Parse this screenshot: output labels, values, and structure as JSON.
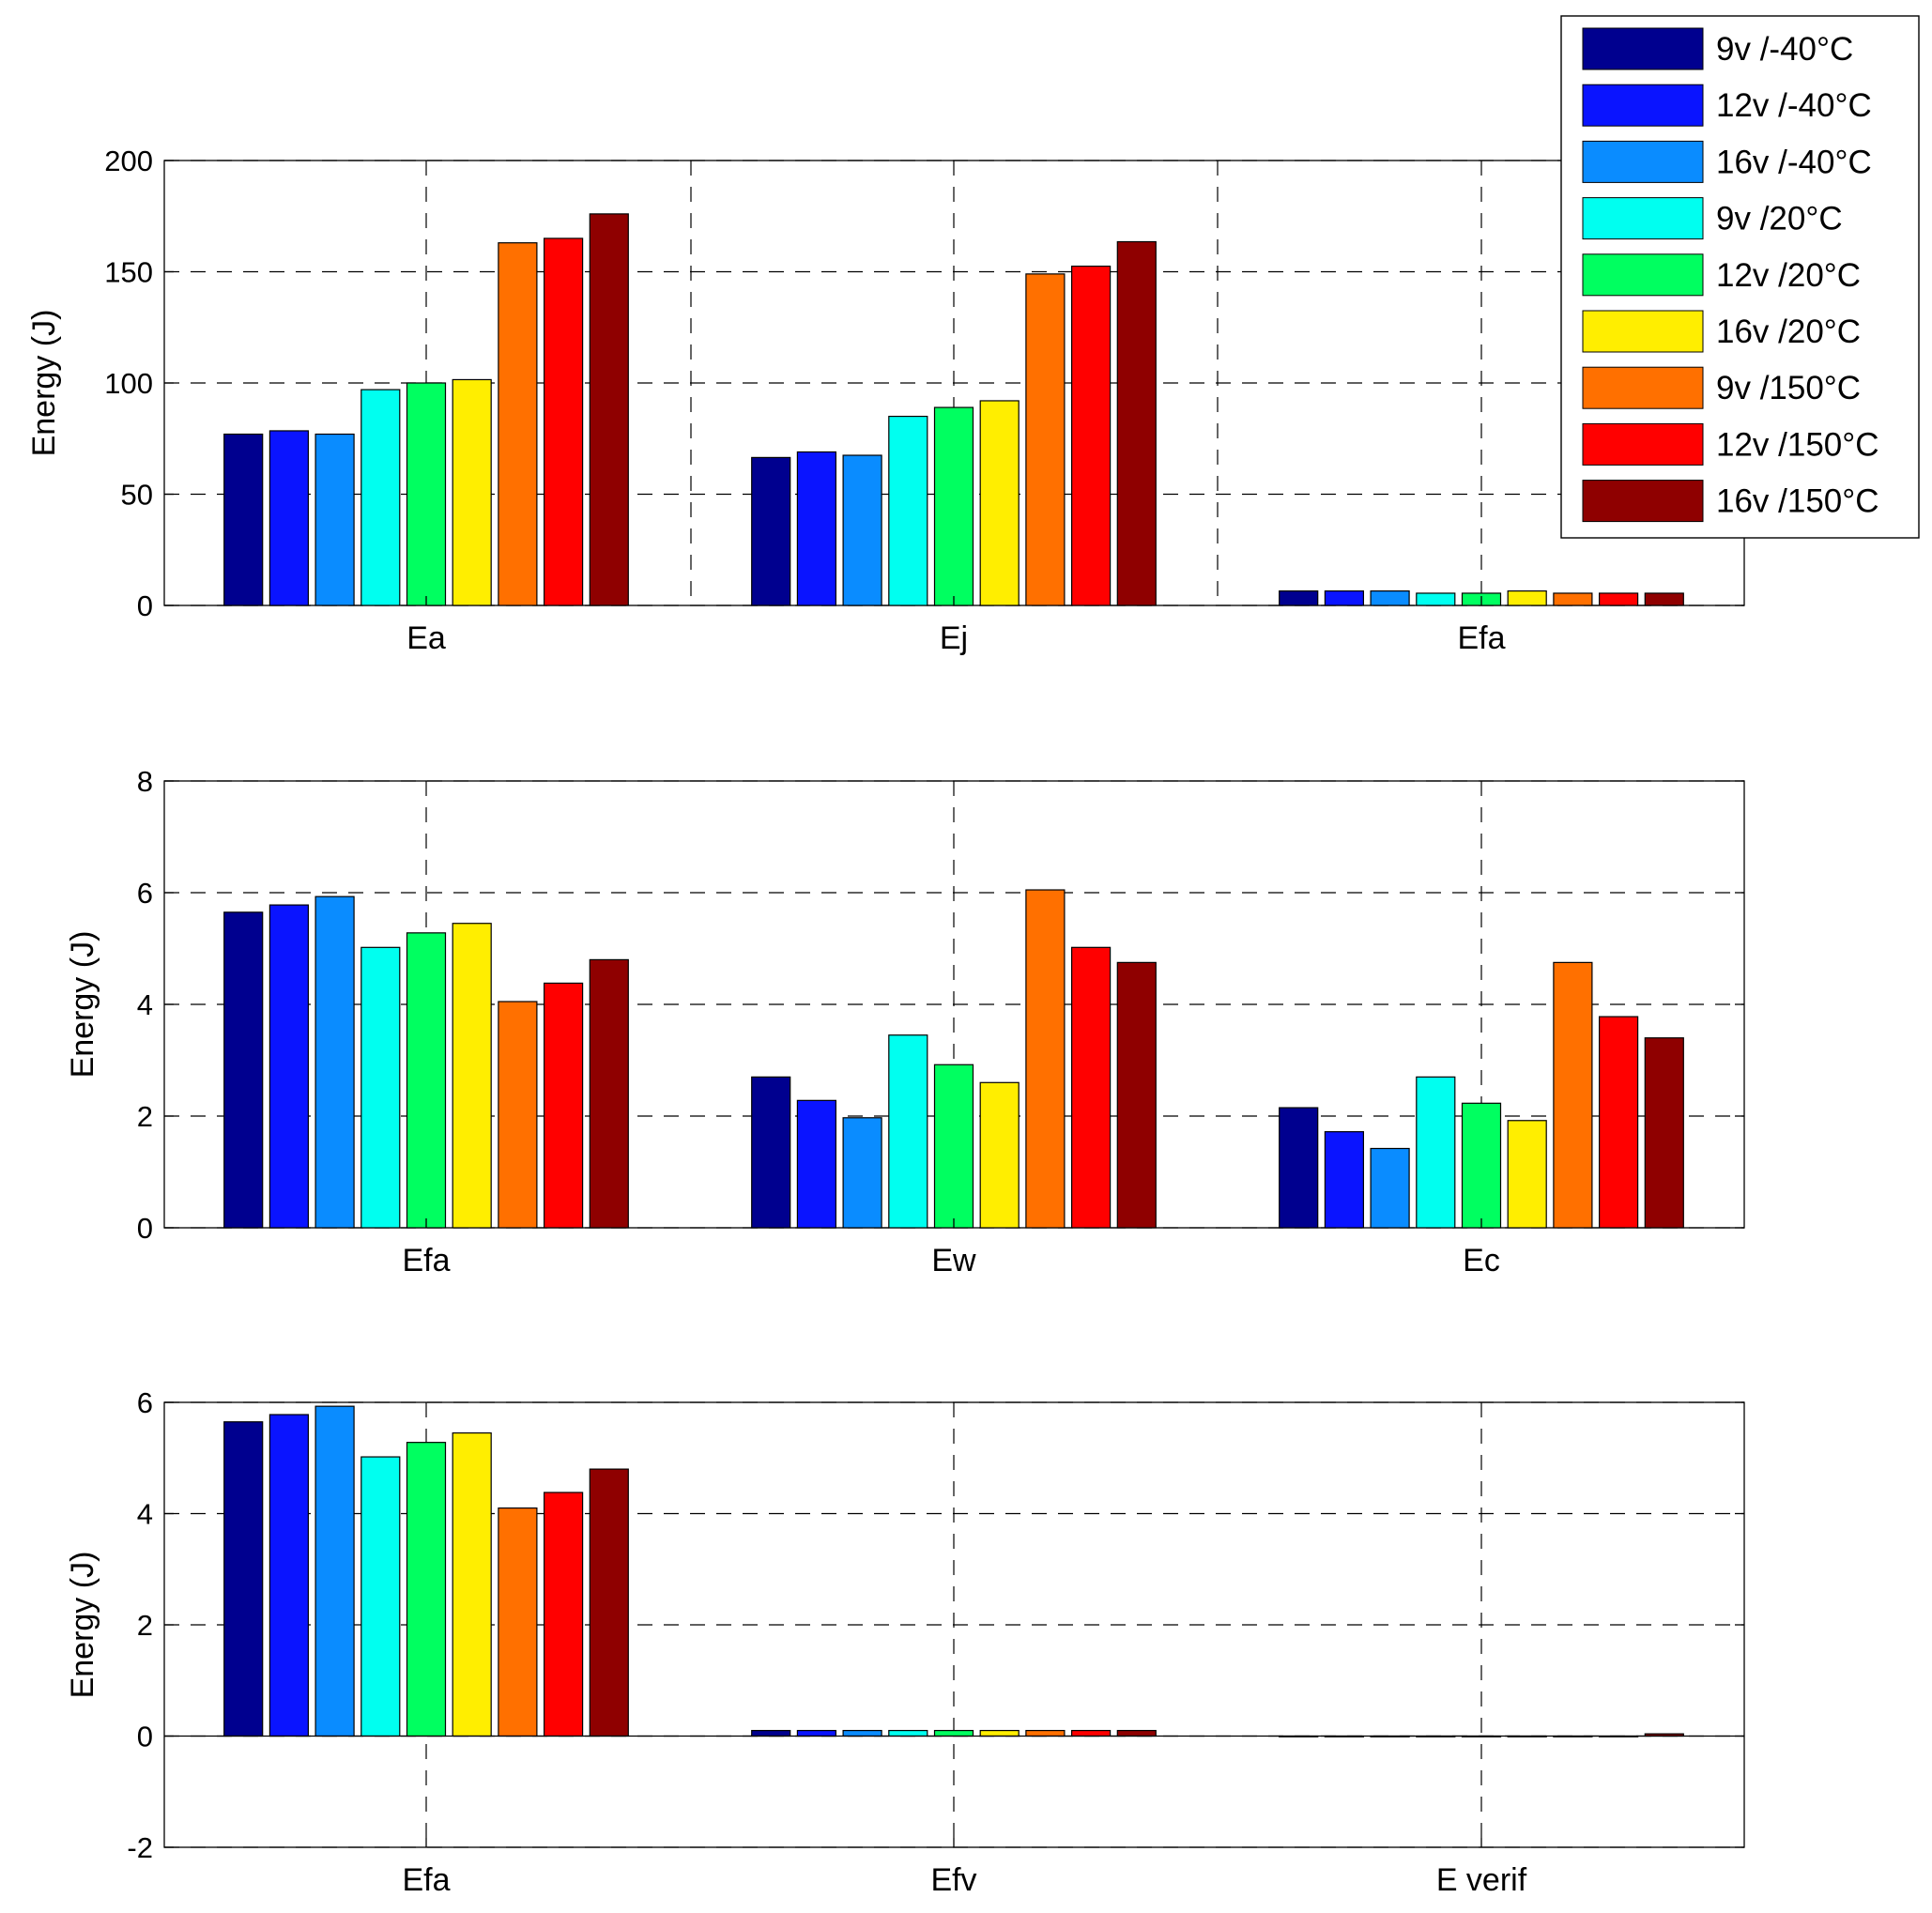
{
  "legend": {
    "entries": [
      {
        "label": "9v /-40°C",
        "color": "#00008F"
      },
      {
        "label": "12v /-40°C",
        "color": "#0A14FF"
      },
      {
        "label": "16v /-40°C",
        "color": "#0A8CFF"
      },
      {
        "label": "9v /20°C",
        "color": "#00FFF0"
      },
      {
        "label": "12v /20°C",
        "color": "#00FF60"
      },
      {
        "label": "16v /20°C",
        "color": "#FFEE00"
      },
      {
        "label": "9v /150°C",
        "color": "#FF7000"
      },
      {
        "label": "12v /150°C",
        "color": "#FF0000"
      },
      {
        "label": "16v /150°C",
        "color": "#8F0000"
      }
    ]
  },
  "chart_data": [
    {
      "type": "bar",
      "title": "",
      "ylabel": "Energy (J)",
      "xlabel": "",
      "ylim": [
        0,
        200
      ],
      "yticks": [
        0,
        50,
        100,
        150,
        200
      ],
      "grid": true,
      "categories": [
        "Ea",
        "Ej",
        "Efa"
      ],
      "series": [
        {
          "name": "9v /-40°C",
          "values": [
            77,
            66.5,
            6.5
          ]
        },
        {
          "name": "12v /-40°C",
          "values": [
            78.5,
            69,
            6.5
          ]
        },
        {
          "name": "16v /-40°C",
          "values": [
            77,
            67.5,
            6.5
          ]
        },
        {
          "name": "9v /20°C",
          "values": [
            97,
            85,
            5.5
          ]
        },
        {
          "name": "12v /20°C",
          "values": [
            100,
            89,
            5.5
          ]
        },
        {
          "name": "16v /20°C",
          "values": [
            101.5,
            92,
            6.5
          ]
        },
        {
          "name": "9v /150°C",
          "values": [
            163,
            149,
            5.5
          ]
        },
        {
          "name": "12v /150°C",
          "values": [
            165,
            152.5,
            5.5
          ]
        },
        {
          "name": "16v /150°C",
          "values": [
            176,
            163.5,
            5.5
          ]
        }
      ]
    },
    {
      "type": "bar",
      "title": "",
      "ylabel": "Energy (J)",
      "xlabel": "",
      "ylim": [
        0,
        8
      ],
      "yticks": [
        0,
        2,
        4,
        6,
        8
      ],
      "grid": true,
      "categories": [
        "Efa",
        "Ew",
        "Ec"
      ],
      "series": [
        {
          "name": "9v /-40°C",
          "values": [
            5.65,
            2.7,
            2.15
          ]
        },
        {
          "name": "12v /-40°C",
          "values": [
            5.78,
            2.28,
            1.72
          ]
        },
        {
          "name": "16v /-40°C",
          "values": [
            5.93,
            1.97,
            1.42
          ]
        },
        {
          "name": "9v /20°C",
          "values": [
            5.02,
            3.45,
            2.7
          ]
        },
        {
          "name": "12v /20°C",
          "values": [
            5.28,
            2.92,
            2.23
          ]
        },
        {
          "name": "16v /20°C",
          "values": [
            5.45,
            2.6,
            1.92
          ]
        },
        {
          "name": "9v /150°C",
          "values": [
            4.05,
            6.05,
            4.75
          ]
        },
        {
          "name": "12v /150°C",
          "values": [
            4.38,
            5.02,
            3.78
          ]
        },
        {
          "name": "16v /150°C",
          "values": [
            4.8,
            4.75,
            3.4
          ]
        }
      ]
    },
    {
      "type": "bar",
      "title": "",
      "ylabel": "Energy (J)",
      "xlabel": "",
      "ylim": [
        -2,
        6
      ],
      "yticks": [
        -2,
        0,
        2,
        4,
        6
      ],
      "grid": true,
      "categories": [
        "Efa",
        "Efv",
        "E verif"
      ],
      "series": [
        {
          "name": "9v /-40°C",
          "values": [
            5.65,
            0.1,
            0
          ]
        },
        {
          "name": "12v /-40°C",
          "values": [
            5.78,
            0.1,
            0
          ]
        },
        {
          "name": "16v /-40°C",
          "values": [
            5.93,
            0.1,
            0
          ]
        },
        {
          "name": "9v /20°C",
          "values": [
            5.02,
            0.1,
            0
          ]
        },
        {
          "name": "12v /20°C",
          "values": [
            5.28,
            0.1,
            0
          ]
        },
        {
          "name": "16v /20°C",
          "values": [
            5.45,
            0.1,
            0
          ]
        },
        {
          "name": "9v /150°C",
          "values": [
            4.1,
            0.1,
            0
          ]
        },
        {
          "name": "12v /150°C",
          "values": [
            4.38,
            0.1,
            0
          ]
        },
        {
          "name": "16v /150°C",
          "values": [
            4.8,
            0.1,
            0.04
          ]
        }
      ]
    }
  ]
}
